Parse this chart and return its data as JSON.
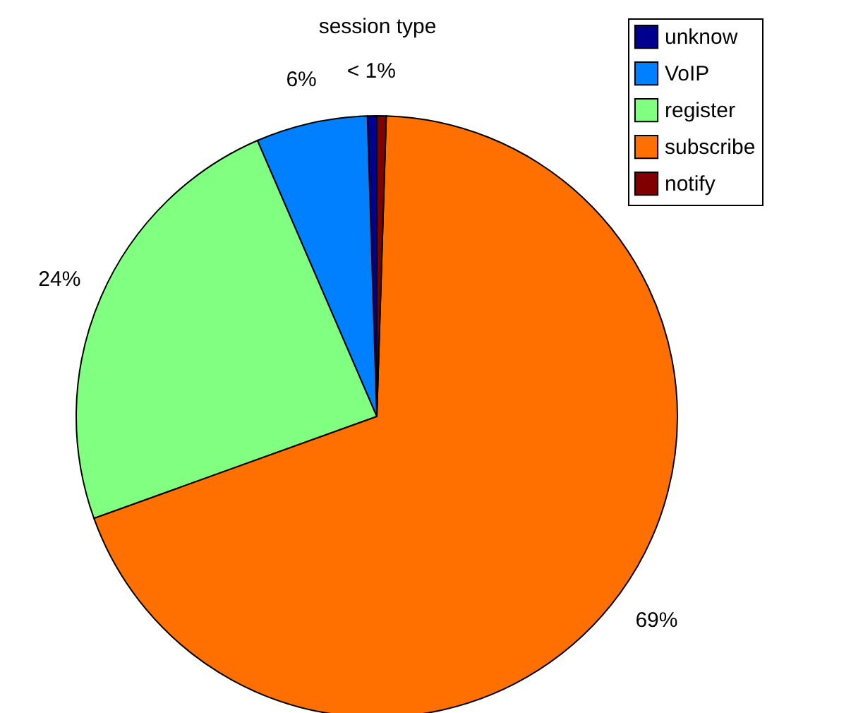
{
  "chart_data": {
    "type": "pie",
    "title": "session type",
    "categories": [
      "unknow",
      "VoIP",
      "register",
      "subscribe",
      "notify"
    ],
    "values": [
      0.5,
      6,
      24,
      69,
      0.5
    ],
    "value_labels": [
      "< 1%",
      "6%",
      "24%",
      "69%",
      null
    ],
    "colors": [
      "#00008f",
      "#0080ff",
      "#80ff80",
      "#ff7000",
      "#800000"
    ],
    "legend": "top right"
  }
}
